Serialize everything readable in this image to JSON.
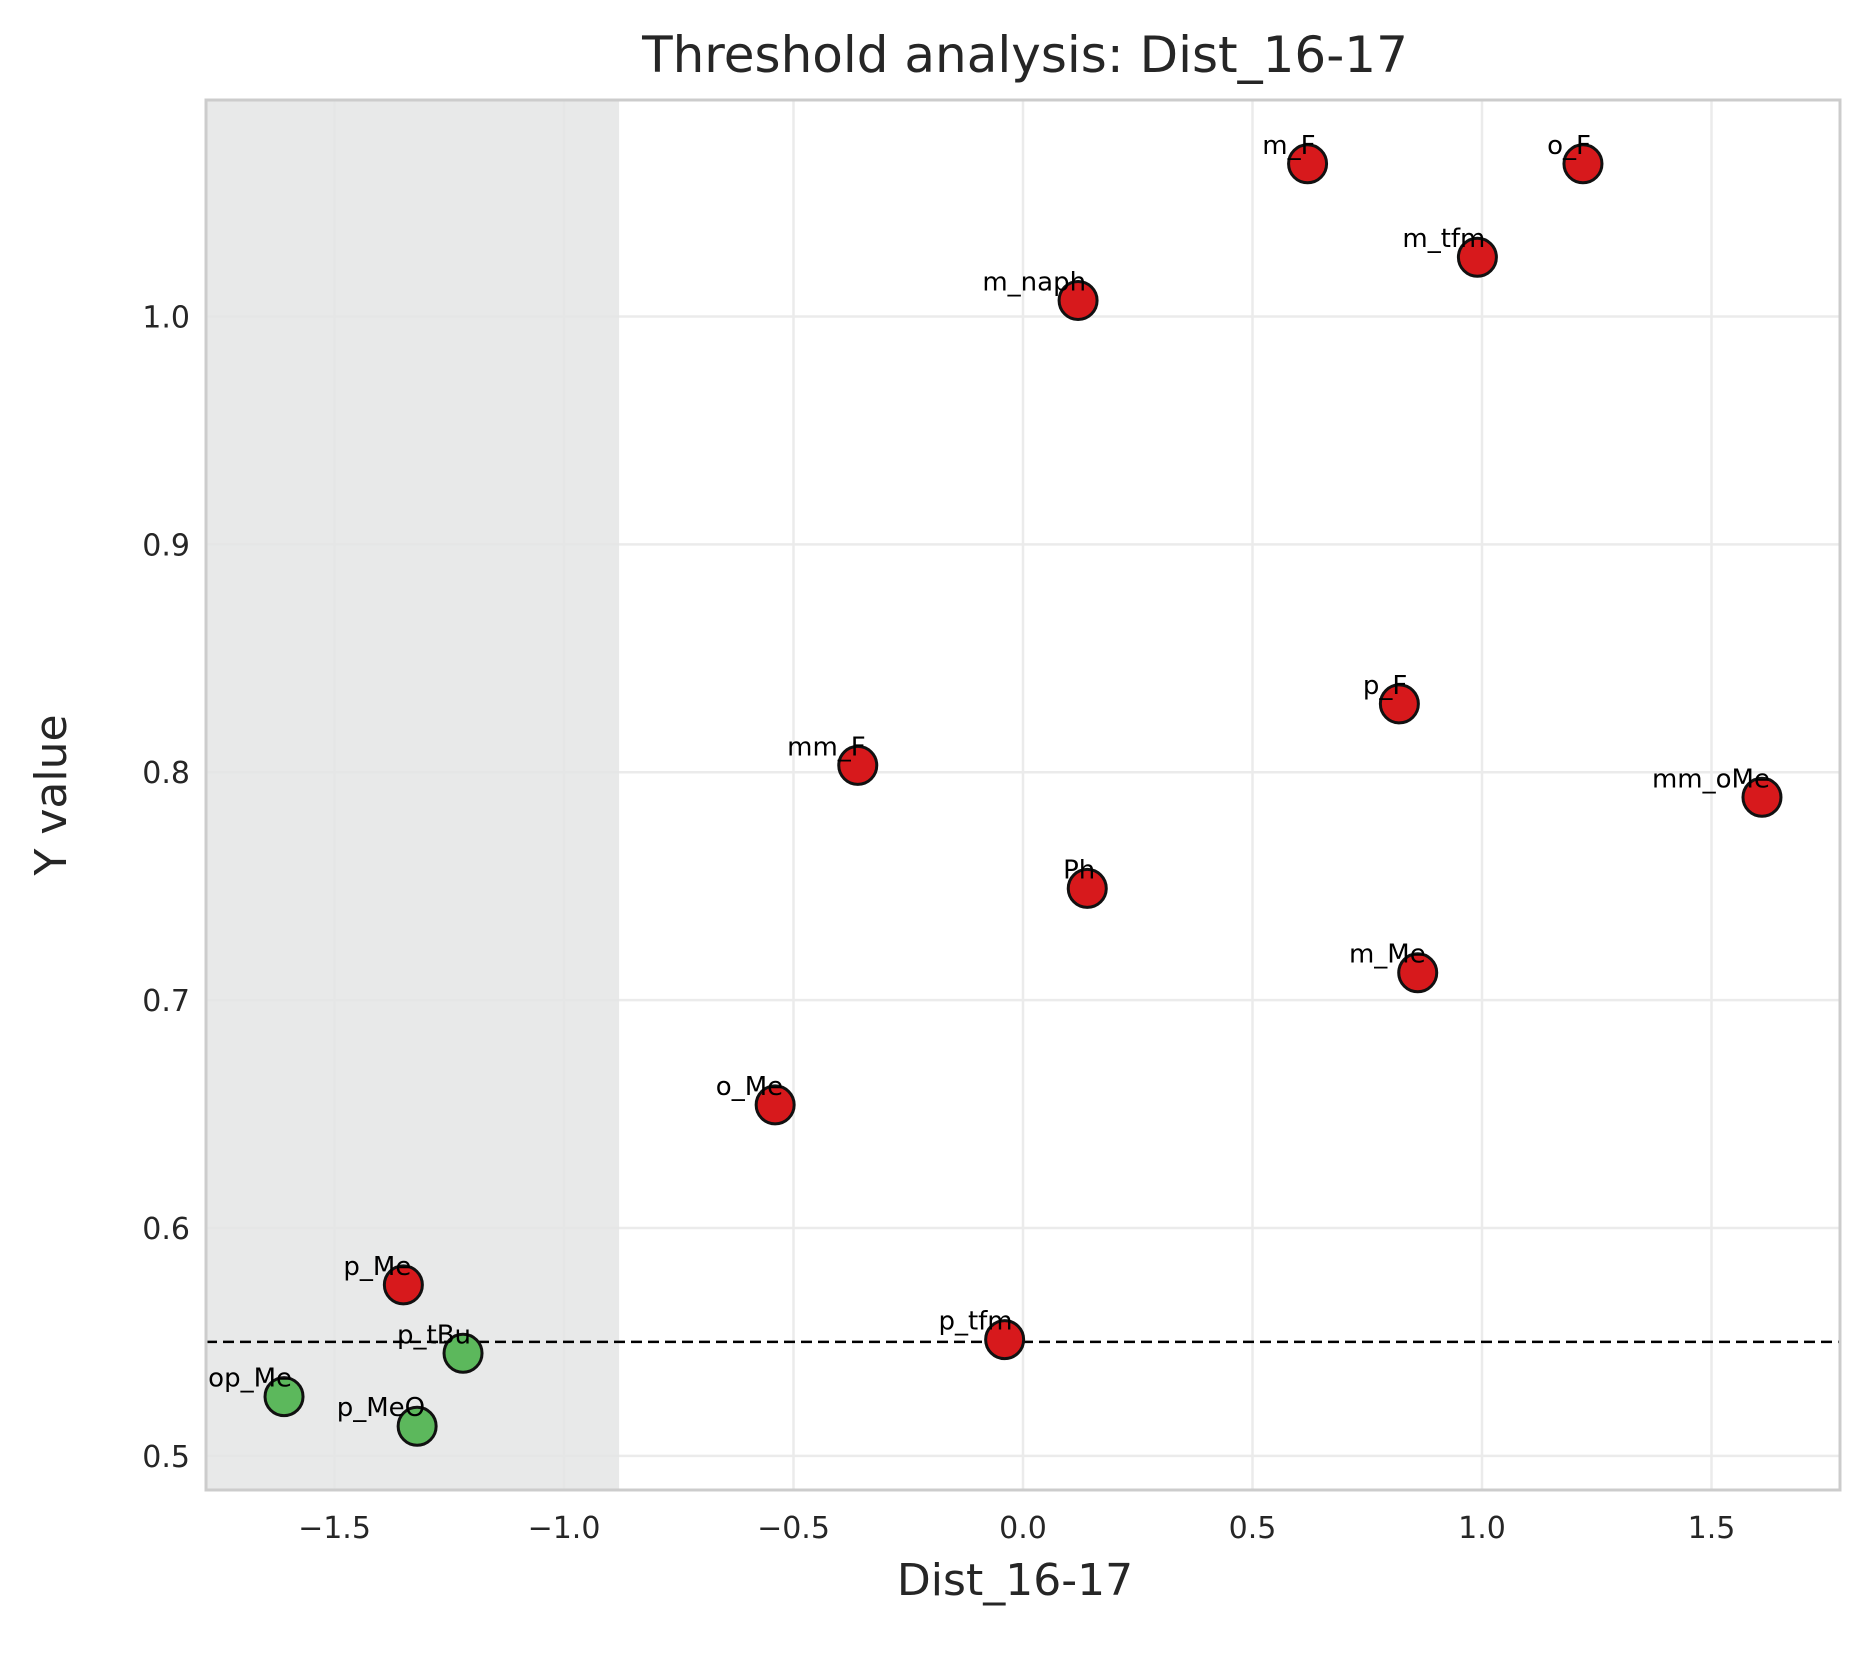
{
  "chart_data": {
    "type": "scatter",
    "title": "Threshold analysis: Dist_16-17",
    "xlabel": "Dist_16-17",
    "ylabel": "Y value",
    "xlim": [
      -1.78,
      1.78
    ],
    "ylim": [
      0.485,
      1.095
    ],
    "xticks": [
      -1.5,
      -1.0,
      -0.5,
      0.0,
      0.5,
      1.0,
      1.5
    ],
    "xtick_labels": [
      "−1.5",
      "−1.0",
      "−0.5",
      "0.0",
      "0.5",
      "1.0",
      "1.5"
    ],
    "yticks": [
      0.5,
      0.6,
      0.7,
      0.8,
      0.9,
      1.0
    ],
    "ytick_labels": [
      "0.5",
      "0.6",
      "0.7",
      "0.8",
      "0.9",
      "1.0"
    ],
    "grid": true,
    "threshold_y": 0.55,
    "shaded_region_x": [
      -1.78,
      -0.88
    ],
    "colors": {
      "above": "#d7191c",
      "below": "#5cb85c",
      "shade": "#e4e5e5",
      "grid": "#ebebeb",
      "frame": "#cccccc"
    },
    "points": [
      {
        "label": "m_F",
        "x": 0.62,
        "y": 1.067,
        "group": "above"
      },
      {
        "label": "o_F",
        "x": 1.22,
        "y": 1.067,
        "group": "above"
      },
      {
        "label": "m_tfm",
        "x": 0.99,
        "y": 1.026,
        "group": "above"
      },
      {
        "label": "m_naph",
        "x": 0.12,
        "y": 1.007,
        "group": "above"
      },
      {
        "label": "p_F",
        "x": 0.82,
        "y": 0.83,
        "group": "above"
      },
      {
        "label": "mm_F",
        "x": -0.36,
        "y": 0.803,
        "group": "above"
      },
      {
        "label": "mm_oMe",
        "x": 1.61,
        "y": 0.789,
        "group": "above"
      },
      {
        "label": "Ph",
        "x": 0.14,
        "y": 0.749,
        "group": "above"
      },
      {
        "label": "m_Me",
        "x": 0.86,
        "y": 0.712,
        "group": "above"
      },
      {
        "label": "o_Me",
        "x": -0.54,
        "y": 0.654,
        "group": "above"
      },
      {
        "label": "p_Me",
        "x": -1.35,
        "y": 0.575,
        "group": "above"
      },
      {
        "label": "p_tfm",
        "x": -0.04,
        "y": 0.551,
        "group": "above"
      },
      {
        "label": "p_tBu",
        "x": -1.22,
        "y": 0.545,
        "group": "below"
      },
      {
        "label": "op_Me",
        "x": -1.61,
        "y": 0.526,
        "group": "below"
      },
      {
        "label": "p_MeO",
        "x": -1.32,
        "y": 0.513,
        "group": "below"
      }
    ]
  }
}
